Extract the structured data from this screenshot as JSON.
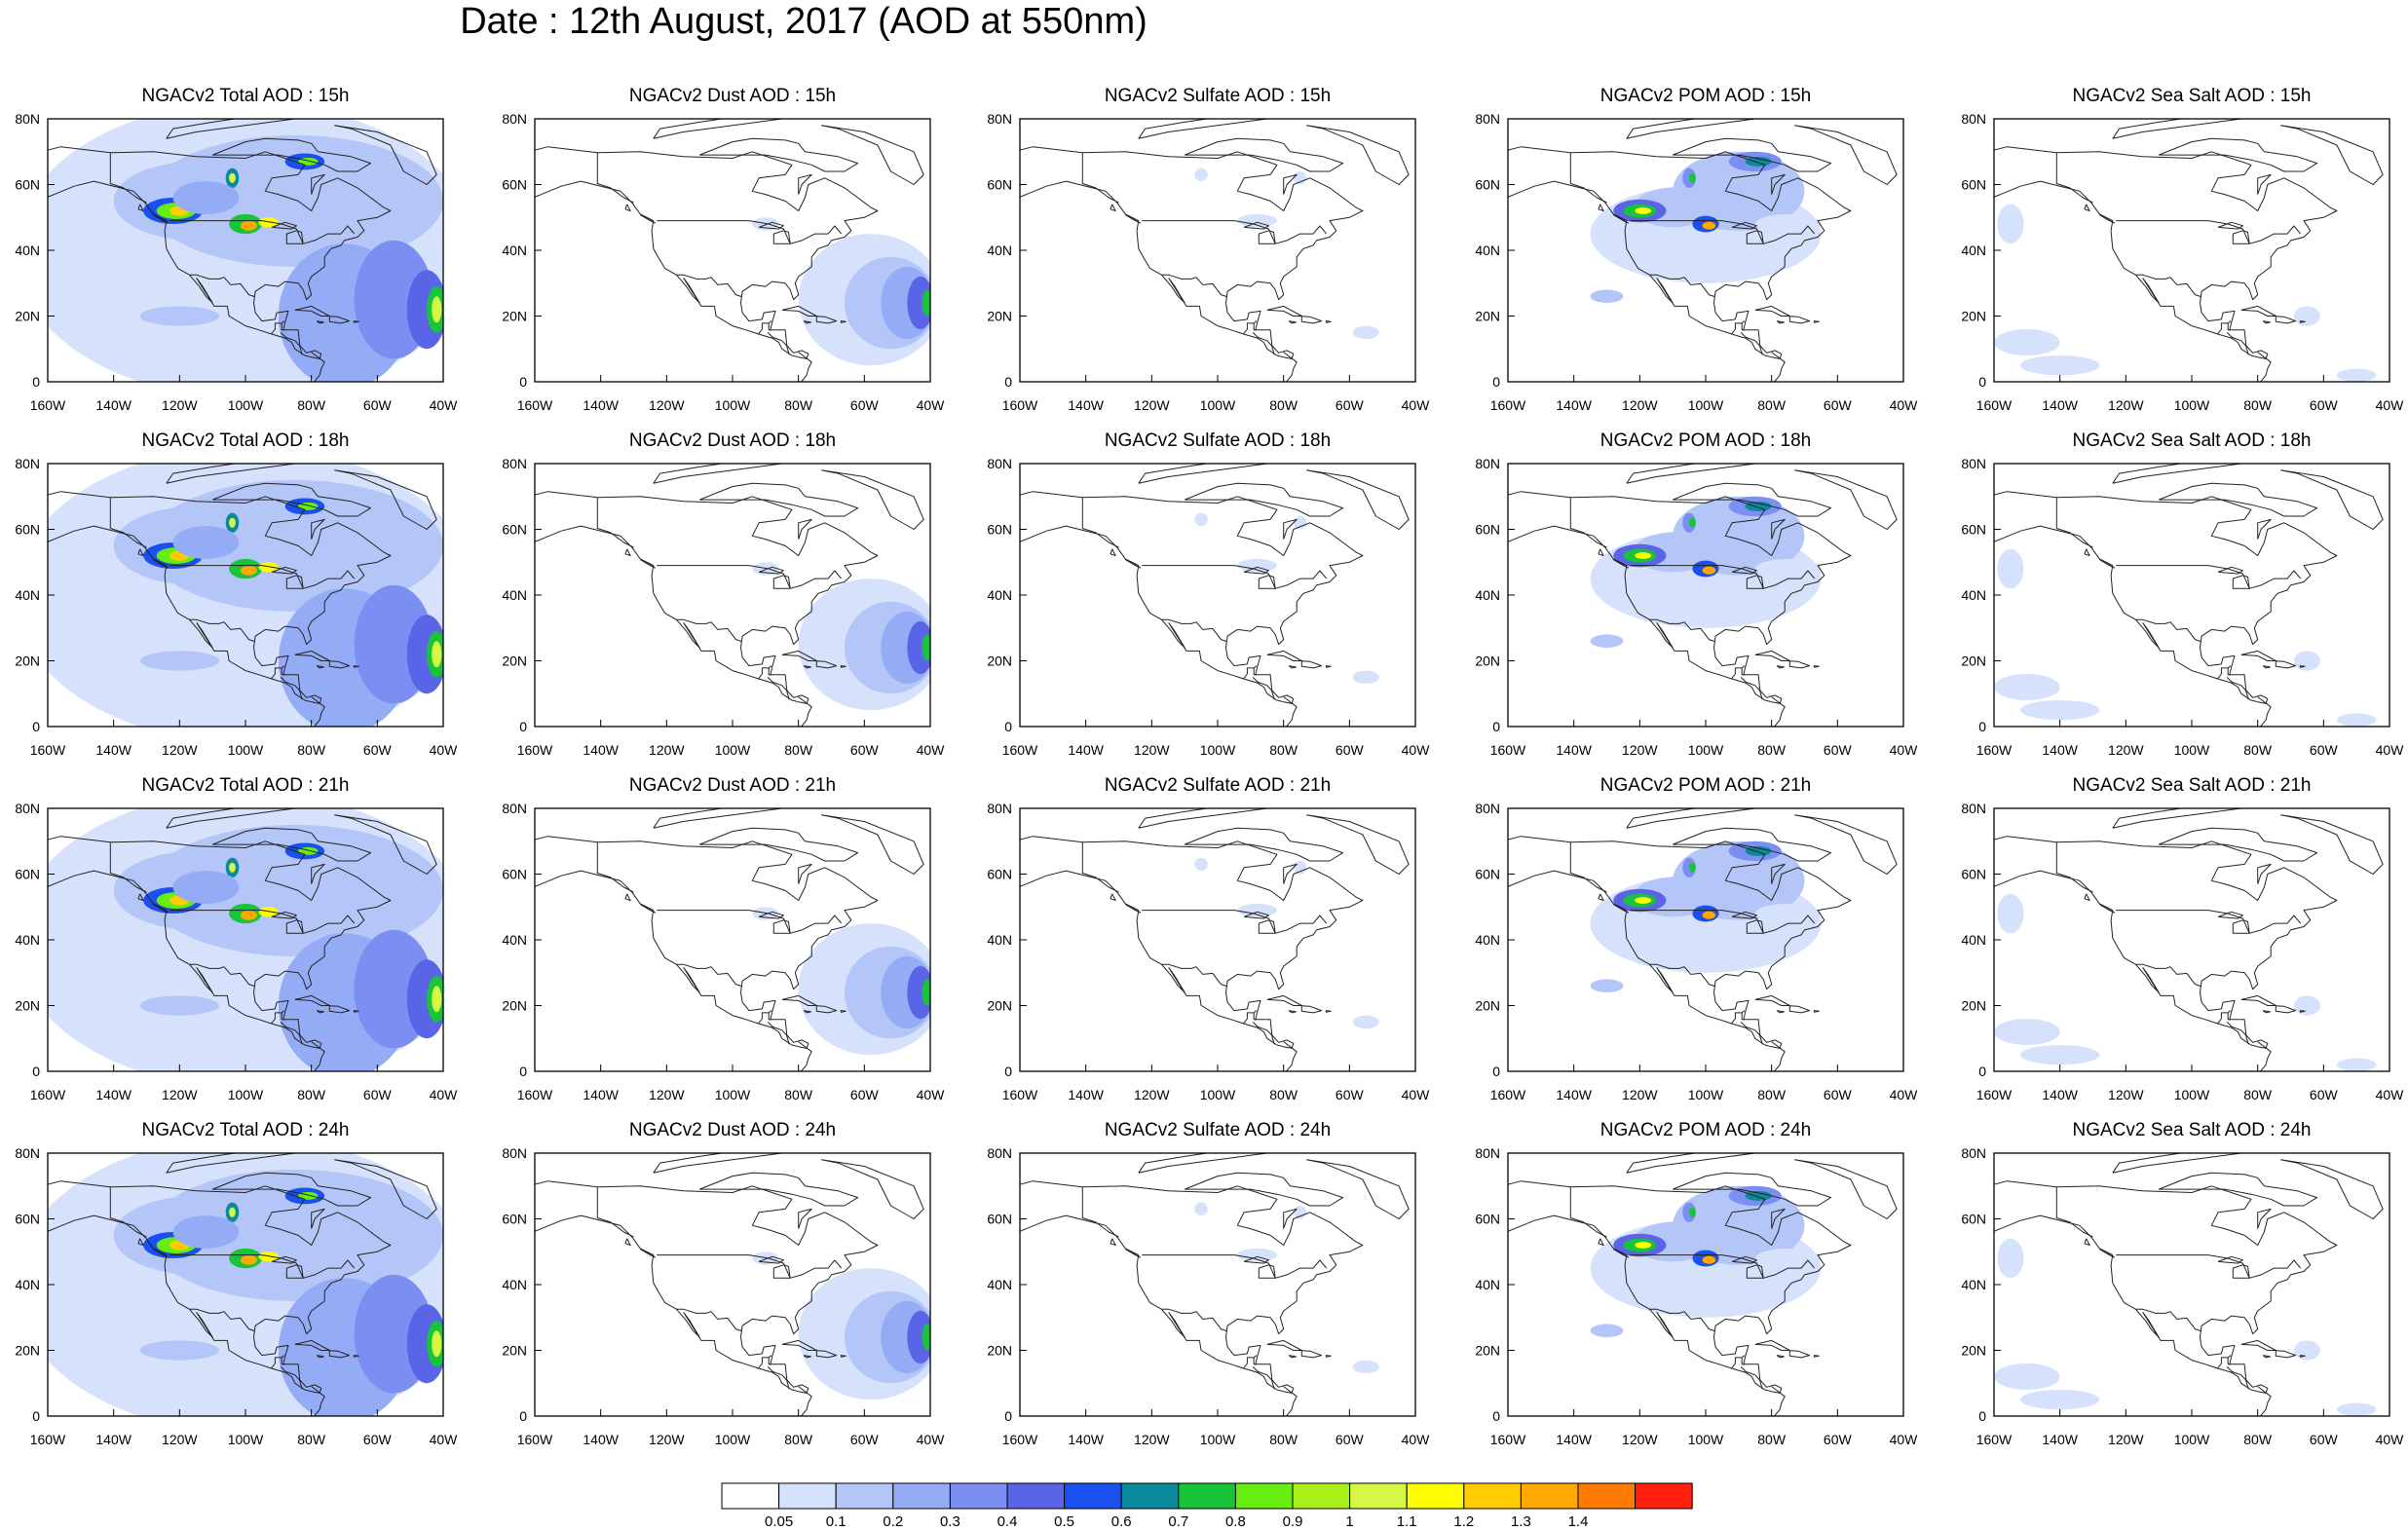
{
  "title": "Date : 12th August, 2017 (AOD at 550nm)",
  "map": {
    "lon_ticks": [
      "160W",
      "140W",
      "120W",
      "100W",
      "80W",
      "60W",
      "40W"
    ],
    "lat_ticks": [
      "0",
      "20N",
      "40N",
      "60N",
      "80N"
    ],
    "lon_range": [
      -160,
      -40
    ],
    "lat_range": [
      0,
      80
    ]
  },
  "panels": [
    {
      "title": "NGACv2 Total AOD : 15h",
      "species": "total",
      "hour": "15h"
    },
    {
      "title": "NGACv2 Dust AOD : 15h",
      "species": "dust",
      "hour": "15h"
    },
    {
      "title": "NGACv2 Sulfate AOD : 15h",
      "species": "sulfate",
      "hour": "15h"
    },
    {
      "title": "NGACv2 POM AOD : 15h",
      "species": "pom",
      "hour": "15h"
    },
    {
      "title": "NGACv2 Sea Salt AOD : 15h",
      "species": "seasalt",
      "hour": "15h"
    },
    {
      "title": "NGACv2 Total AOD : 18h",
      "species": "total",
      "hour": "18h"
    },
    {
      "title": "NGACv2 Dust AOD : 18h",
      "species": "dust",
      "hour": "18h"
    },
    {
      "title": "NGACv2 Sulfate AOD : 18h",
      "species": "sulfate",
      "hour": "18h"
    },
    {
      "title": "NGACv2 POM AOD : 18h",
      "species": "pom",
      "hour": "18h"
    },
    {
      "title": "NGACv2 Sea Salt AOD : 18h",
      "species": "seasalt",
      "hour": "18h"
    },
    {
      "title": "NGACv2 Total AOD : 21h",
      "species": "total",
      "hour": "21h"
    },
    {
      "title": "NGACv2 Dust AOD : 21h",
      "species": "dust",
      "hour": "21h"
    },
    {
      "title": "NGACv2 Sulfate AOD : 21h",
      "species": "sulfate",
      "hour": "21h"
    },
    {
      "title": "NGACv2 POM AOD : 21h",
      "species": "pom",
      "hour": "21h"
    },
    {
      "title": "NGACv2 Sea Salt AOD : 21h",
      "species": "seasalt",
      "hour": "21h"
    },
    {
      "title": "NGACv2 Total AOD : 24h",
      "species": "total",
      "hour": "24h"
    },
    {
      "title": "NGACv2 Dust AOD : 24h",
      "species": "dust",
      "hour": "24h"
    },
    {
      "title": "NGACv2 Sulfate AOD : 24h",
      "species": "sulfate",
      "hour": "24h"
    },
    {
      "title": "NGACv2 POM AOD : 24h",
      "species": "pom",
      "hour": "24h"
    },
    {
      "title": "NGACv2 Sea Salt  AOD : 24h",
      "species": "seasalt",
      "hour": "24h"
    }
  ],
  "colorbar": {
    "labels": [
      "0.05",
      "0.1",
      "0.2",
      "0.3",
      "0.4",
      "0.5",
      "0.6",
      "0.7",
      "0.8",
      "0.9",
      "1",
      "1.1",
      "1.2",
      "1.3",
      "1.4"
    ],
    "colors": [
      "#ffffff",
      "#d6e2fb",
      "#b3c6f7",
      "#94acf6",
      "#7b8ef1",
      "#5a64e6",
      "#1a50f0",
      "#0a8a9a",
      "#18c43a",
      "#66ee10",
      "#a8f018",
      "#d6f844",
      "#ffff00",
      "#ffcc00",
      "#ffa800",
      "#ff7a00",
      "#ff2010"
    ]
  }
}
